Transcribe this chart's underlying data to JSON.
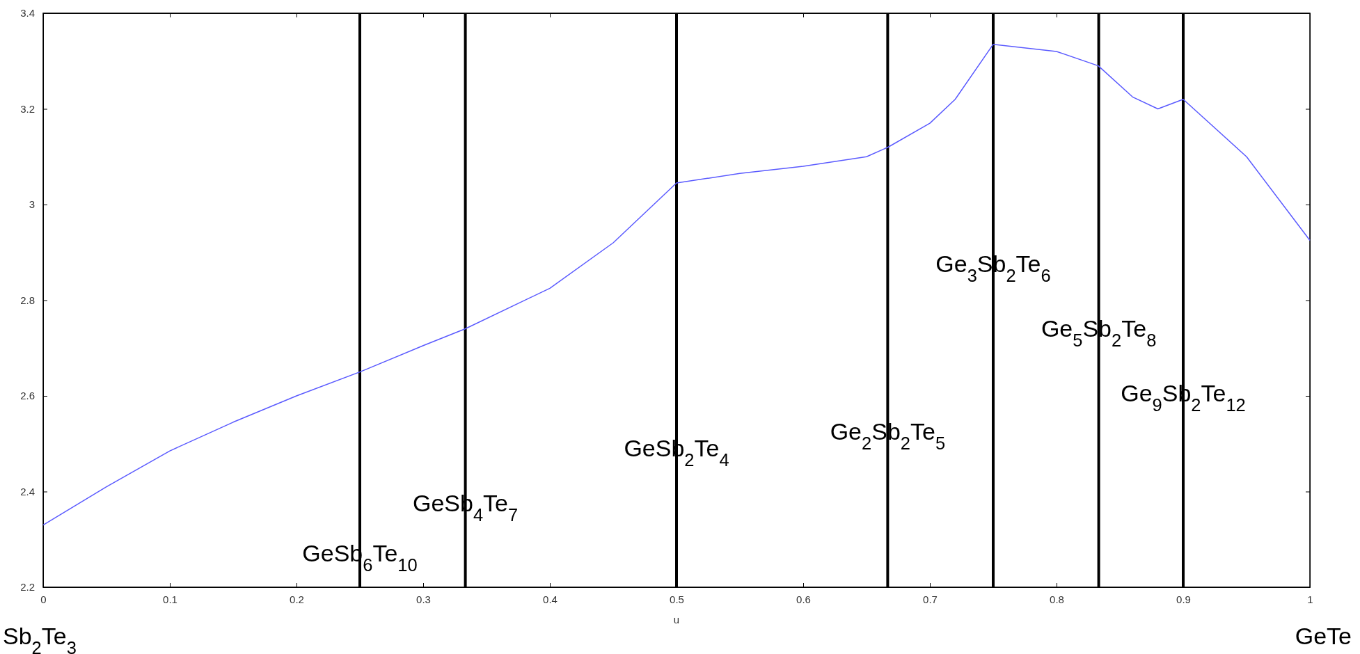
{
  "chart_data": {
    "type": "line",
    "xlabel": "u",
    "x": [
      0,
      0.05,
      0.1,
      0.15,
      0.2,
      0.25,
      0.3,
      0.333,
      0.4,
      0.45,
      0.5,
      0.55,
      0.6,
      0.65,
      0.667,
      0.7,
      0.72,
      0.75,
      0.8,
      0.833,
      0.86,
      0.88,
      0.9,
      0.95,
      1
    ],
    "series": [
      {
        "color": "#5a5aff",
        "values": [
          2.33,
          2.41,
          2.485,
          2.545,
          2.6,
          2.65,
          2.705,
          2.74,
          2.825,
          2.92,
          3.045,
          3.065,
          3.08,
          3.1,
          3.12,
          3.17,
          3.22,
          3.335,
          3.32,
          3.29,
          3.225,
          3.2,
          3.22,
          3.1,
          2.925
        ]
      }
    ],
    "xlim": [
      0,
      1
    ],
    "xticks": [
      0,
      0.1,
      0.2,
      0.3,
      0.4,
      0.5,
      0.6,
      0.7,
      0.8,
      0.9,
      1
    ],
    "ylim": [
      2.2,
      3.4
    ],
    "yticks": [
      2.2,
      2.4,
      2.6,
      2.8,
      3,
      3.2,
      3.4
    ],
    "grid": false,
    "marker": "none",
    "line_style": "solid",
    "ref_lines": [
      {
        "axis": "x",
        "value": 0.25,
        "color": "#000000"
      },
      {
        "axis": "x",
        "value": 0.3333,
        "color": "#000000"
      },
      {
        "axis": "x",
        "value": 0.5,
        "color": "#000000"
      },
      {
        "axis": "x",
        "value": 0.6667,
        "color": "#000000"
      },
      {
        "axis": "x",
        "value": 0.75,
        "color": "#000000"
      },
      {
        "axis": "x",
        "value": 0.8333,
        "color": "#000000"
      },
      {
        "axis": "x",
        "value": 0.9,
        "color": "#000000"
      }
    ],
    "annotations": [
      {
        "text": "GeSb$_{6}$Te$_{10}$",
        "x": 0.25,
        "y": 2.27
      },
      {
        "text": "GeSb$_{4}$Te$_{7}$",
        "x": 0.3333,
        "y": 2.375
      },
      {
        "text": "GeSb$_{2}$Te$_{4}$",
        "x": 0.5,
        "y": 2.49
      },
      {
        "text": "Ge$_{2}$Sb$_{2}$Te$_{5}$",
        "x": 0.6667,
        "y": 2.525
      },
      {
        "text": "Ge$_{3}$Sb$_{2}$Te$_{6}$",
        "x": 0.75,
        "y": 2.875
      },
      {
        "text": "Ge$_{5}$Sb$_{2}$Te$_{8}$",
        "x": 0.8333,
        "y": 2.74
      },
      {
        "text": "Ge$_{9}$Sb$_{2}$Te$_{12}$",
        "x": 0.9,
        "y": 2.605
      },
      "Sb$_{2}$Te$_{3}$",
      "GeTe"
    ]
  }
}
